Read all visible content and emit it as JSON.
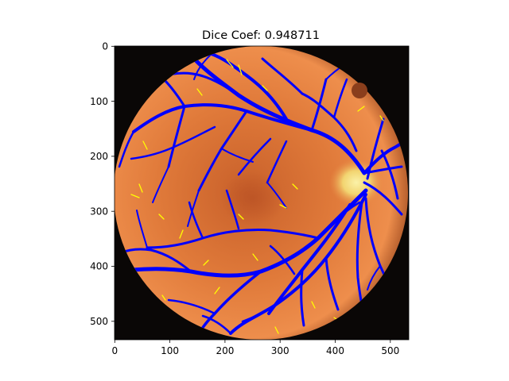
{
  "figure": {
    "title": "Dice Coef: 0.948711",
    "x_ticks": [
      "0",
      "100",
      "200",
      "300",
      "400",
      "500"
    ],
    "y_ticks": [
      "0",
      "100",
      "200",
      "300",
      "400",
      "500"
    ],
    "x_range": [
      0,
      534
    ],
    "y_range": [
      0,
      534
    ]
  },
  "image": {
    "subject": "retinal fundus photograph with vessel segmentation overlay",
    "background_color": "#0a0706",
    "fundus_color": "#e07a3a",
    "optic_disc_color": "#f5e890",
    "vessel_color": "#0000ff",
    "mismatch_color": "#ffff00"
  }
}
